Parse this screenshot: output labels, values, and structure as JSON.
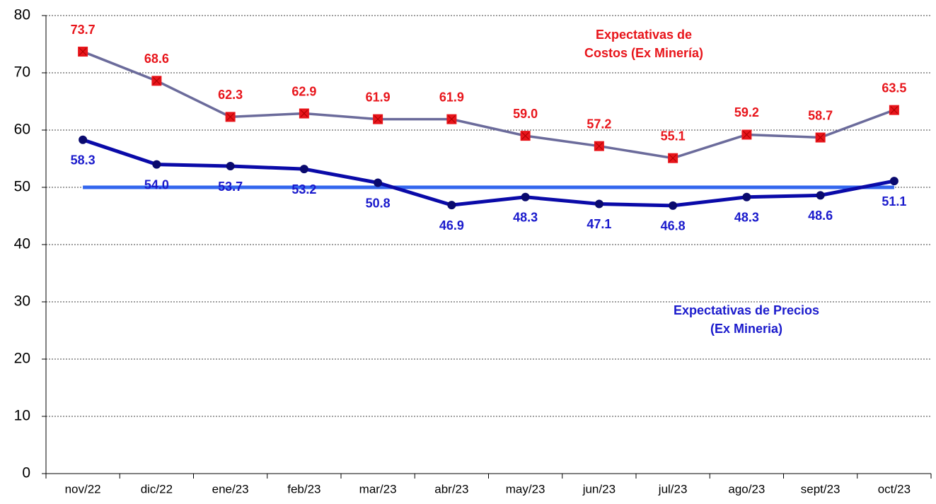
{
  "chart_data": {
    "type": "line",
    "categories": [
      "nov/22",
      "dic/22",
      "ene/23",
      "feb/23",
      "mar/23",
      "abr/23",
      "may/23",
      "jun/23",
      "jul/23",
      "ago/23",
      "sept/23",
      "oct/23"
    ],
    "series": [
      {
        "label": [
          "Expectativas de",
          "Costos (Ex Minería)"
        ],
        "color": "#6b6b9b",
        "marker_color": "#e8151b",
        "label_color": "#e8151b",
        "marker": "square",
        "label_side": "above",
        "values": [
          73.7,
          68.6,
          62.3,
          62.9,
          61.9,
          61.9,
          59.0,
          57.2,
          55.1,
          59.2,
          58.7,
          63.5
        ],
        "value_labels": [
          "73.7",
          "68.6",
          "62.3",
          "62.9",
          "61.9",
          "61.9",
          "59.0",
          "57.2",
          "55.1",
          "59.2",
          "58.7",
          "63.5"
        ]
      },
      {
        "label": [
          "Expectativas de Precios",
          "(Ex Mineria)"
        ],
        "color": "#0a0aa8",
        "marker_color": "#0a0a6e",
        "label_color": "#1a1acc",
        "marker": "circle",
        "label_side": "below",
        "values": [
          58.3,
          54.0,
          53.7,
          53.2,
          50.8,
          46.9,
          48.3,
          47.1,
          46.8,
          48.3,
          48.6,
          51.1
        ],
        "value_labels": [
          "58.3",
          "54.0",
          "53.7",
          "53.2",
          "50.8",
          "46.9",
          "48.3",
          "47.1",
          "46.8",
          "48.3",
          "48.6",
          "51.1"
        ]
      }
    ],
    "reference": {
      "value": 50,
      "color": "#3366ee"
    },
    "ylim": [
      0,
      80
    ],
    "yticks": [
      0,
      10,
      20,
      30,
      40,
      50,
      60,
      70,
      80
    ],
    "grid": true
  }
}
